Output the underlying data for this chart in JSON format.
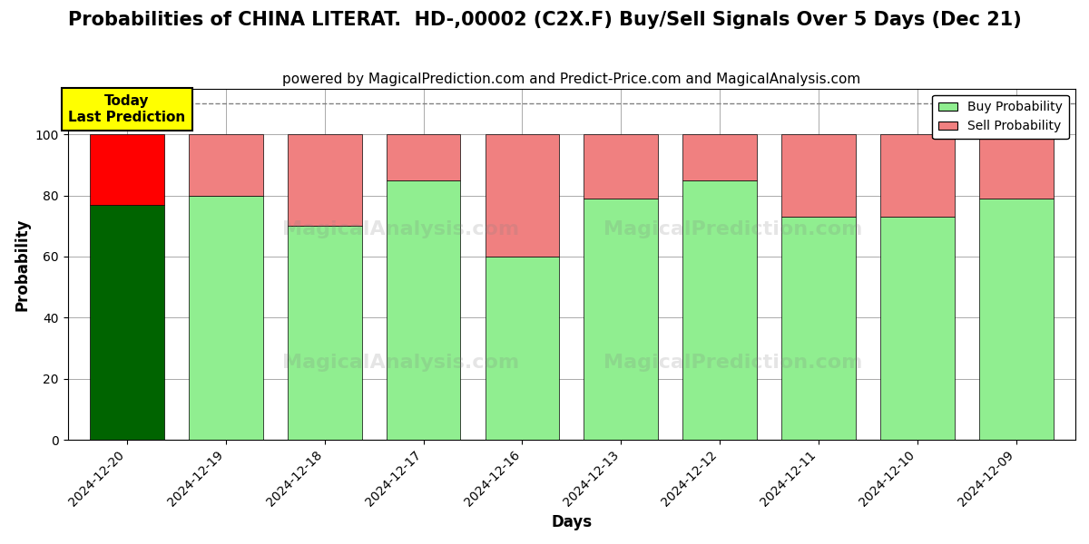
{
  "title": "Probabilities of CHINA LITERAT.  HD-,00002 (C2X.F) Buy/Sell Signals Over 5 Days (Dec 21)",
  "subtitle": "powered by MagicalPrediction.com and Predict-Price.com and MagicalAnalysis.com",
  "xlabel": "Days",
  "ylabel": "Probability",
  "categories": [
    "2024-12-20",
    "2024-12-19",
    "2024-12-18",
    "2024-12-17",
    "2024-12-16",
    "2024-12-13",
    "2024-12-12",
    "2024-12-11",
    "2024-12-10",
    "2024-12-09"
  ],
  "buy_values": [
    77,
    80,
    70,
    85,
    60,
    79,
    85,
    73,
    73,
    79
  ],
  "sell_values": [
    23,
    20,
    30,
    15,
    40,
    21,
    15,
    27,
    27,
    21
  ],
  "buy_colors": [
    "#006400",
    "#90EE90",
    "#90EE90",
    "#90EE90",
    "#90EE90",
    "#90EE90",
    "#90EE90",
    "#90EE90",
    "#90EE90",
    "#90EE90"
  ],
  "sell_colors": [
    "#FF0000",
    "#F08080",
    "#F08080",
    "#F08080",
    "#F08080",
    "#F08080",
    "#F08080",
    "#F08080",
    "#F08080",
    "#F08080"
  ],
  "legend_buy_color": "#90EE90",
  "legend_sell_color": "#F08080",
  "today_box_color": "#FFFF00",
  "today_text": "Today\nLast Prediction",
  "dashed_line_y": 110,
  "ylim": [
    0,
    115
  ],
  "yticks": [
    0,
    20,
    40,
    60,
    80,
    100
  ],
  "background_color": "#ffffff",
  "grid_color": "#aaaaaa",
  "title_fontsize": 15,
  "subtitle_fontsize": 11,
  "bar_width": 0.75
}
